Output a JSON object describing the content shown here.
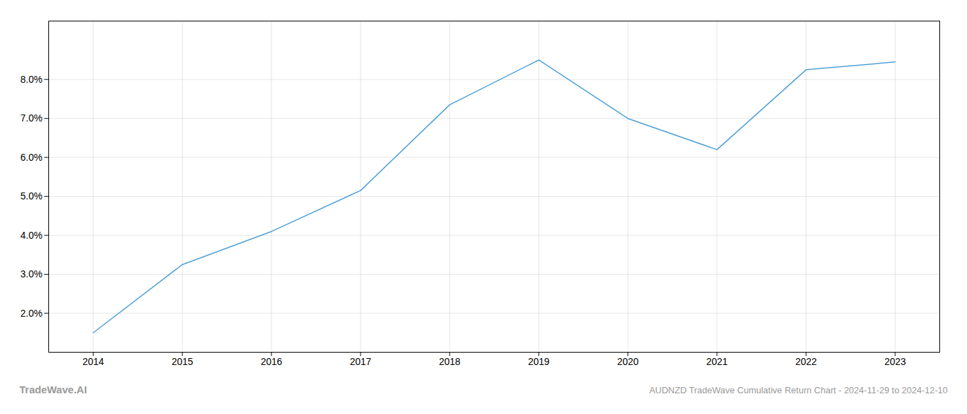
{
  "chart_data": {
    "type": "line",
    "title": "AUDNZD TradeWave Cumulative Return Chart - 2024-11-29 to 2024-12-10",
    "annotations": [
      "TradeWave.AI"
    ],
    "x": [
      2014,
      2015,
      2016,
      2017,
      2018,
      2019,
      2020,
      2021,
      2022,
      2023
    ],
    "values": [
      1.5,
      3.25,
      4.1,
      5.15,
      7.35,
      8.5,
      7.0,
      6.2,
      8.25,
      8.45
    ],
    "color": "#4d9fd6",
    "xlim": [
      2013.5,
      2023.5
    ],
    "xticks": [
      2014,
      2015,
      2016,
      2017,
      2018,
      2019,
      2020,
      2021,
      2022,
      2023
    ],
    "ylim": [
      1.0,
      9.5
    ],
    "yticks": [
      {
        "value": 2.0,
        "label": "2.0%"
      },
      {
        "value": 3.0,
        "label": "3.0%"
      },
      {
        "value": 4.0,
        "label": "4.0%"
      },
      {
        "value": 5.0,
        "label": "5.0%"
      },
      {
        "value": 6.0,
        "label": "6.0%"
      },
      {
        "value": 7.0,
        "label": "7.0%"
      },
      {
        "value": 8.0,
        "label": "8.0%"
      }
    ],
    "grid": true
  }
}
